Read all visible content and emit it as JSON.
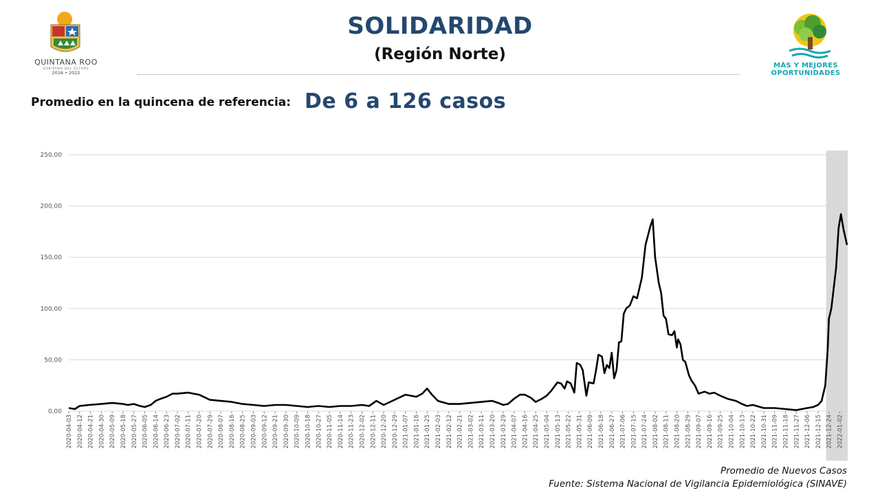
{
  "header": {
    "title": "SOLIDARIDAD",
    "subtitle": "(Región Norte)",
    "reference_label": "Promedio en la quincena de referencia:",
    "reference_value": "De 6 a 126 casos"
  },
  "logo_left": {
    "name": "QUINTANA ROO",
    "sub": "GOBIERNO DEL ESTADO",
    "years": "2016 • 2022",
    "icon": "quintana-roo-coat-of-arms"
  },
  "logo_right": {
    "line1": "MÁS Y MEJORES",
    "line2": "OPORTUNIDADES",
    "icon": "tree-logo"
  },
  "colors": {
    "title": "#24486e",
    "line": "#000000",
    "highlight": "#d9d9d9",
    "logo_teal": "#13a6b0",
    "grid": "#d9d9d9"
  },
  "footer": {
    "legend": "Promedio de Nuevos Casos",
    "source": "Fuente: Sistema Nacional de Vigilancia Epidemiológica (SINAVE)"
  },
  "chart_data": {
    "type": "line",
    "title": "",
    "xlabel": "",
    "ylabel": "",
    "ylim": [
      0,
      250
    ],
    "yticks": [
      0,
      50,
      100,
      150,
      200,
      250
    ],
    "ytick_labels": [
      "0,00",
      "50,00",
      "100,00",
      "150,00",
      "200,00",
      "250,00"
    ],
    "grid": "horizontal",
    "x_start": "2020-04-03",
    "x_end": "2022-01-08",
    "x_tick_labels": [
      "2020-04-03",
      "2020-04-12",
      "2020-04-21",
      "2020-04-30",
      "2020-05-09",
      "2020-05-18",
      "2020-05-27",
      "2020-06-05",
      "2020-06-14",
      "2020-06-23",
      "2020-07-02",
      "2020-07-11",
      "2020-07-20",
      "2020-07-29",
      "2020-08-07",
      "2020-08-16",
      "2020-08-25",
      "2020-09-03",
      "2020-09-12",
      "2020-09-21",
      "2020-09-30",
      "2020-10-09",
      "2020-10-18",
      "2020-10-27",
      "2020-11-05",
      "2020-11-14",
      "2020-11-23",
      "2020-12-02",
      "2020-12-11",
      "2020-12-20",
      "2020-12-29",
      "2021-01-07",
      "2021-01-16",
      "2021-01-25",
      "2021-02-03",
      "2021-02-12",
      "2021-02-21",
      "2021-03-02",
      "2021-03-11",
      "2021-03-20",
      "2021-03-29",
      "2021-04-07",
      "2021-04-16",
      "2021-04-25",
      "2021-05-04",
      "2021-05-13",
      "2021-05-22",
      "2021-05-31",
      "2021-06-09",
      "2021-06-18",
      "2021-06-27",
      "2021-07-06",
      "2021-07-15",
      "2021-07-24",
      "2021-08-02",
      "2021-08-11",
      "2021-08-20",
      "2021-08-29",
      "2021-09-07",
      "2021-09-16",
      "2021-09-25",
      "2021-10-04",
      "2021-10-13",
      "2021-10-22",
      "2021-10-31",
      "2021-11-09",
      "2021-11-18",
      "2021-11-27",
      "2021-12-06",
      "2021-12-15",
      "2021-12-24",
      "2022-01-02"
    ],
    "highlight_range": [
      "2021-12-24",
      "2022-01-08"
    ],
    "series": [
      {
        "name": "Promedio de Nuevos Casos",
        "points": [
          [
            "2020-04-03",
            3
          ],
          [
            "2020-04-08",
            2
          ],
          [
            "2020-04-12",
            5
          ],
          [
            "2020-04-20",
            6
          ],
          [
            "2020-04-30",
            7
          ],
          [
            "2020-05-09",
            8
          ],
          [
            "2020-05-18",
            7
          ],
          [
            "2020-05-22",
            6
          ],
          [
            "2020-05-27",
            7
          ],
          [
            "2020-06-01",
            5
          ],
          [
            "2020-06-05",
            4
          ],
          [
            "2020-06-10",
            6
          ],
          [
            "2020-06-14",
            10
          ],
          [
            "2020-06-18",
            12
          ],
          [
            "2020-06-23",
            14
          ],
          [
            "2020-06-28",
            17
          ],
          [
            "2020-07-02",
            17
          ],
          [
            "2020-07-11",
            18
          ],
          [
            "2020-07-20",
            16
          ],
          [
            "2020-07-29",
            11
          ],
          [
            "2020-08-07",
            10
          ],
          [
            "2020-08-16",
            9
          ],
          [
            "2020-08-25",
            7
          ],
          [
            "2020-09-03",
            6
          ],
          [
            "2020-09-12",
            5
          ],
          [
            "2020-09-21",
            6
          ],
          [
            "2020-09-30",
            6
          ],
          [
            "2020-10-09",
            5
          ],
          [
            "2020-10-18",
            4
          ],
          [
            "2020-10-27",
            5
          ],
          [
            "2020-11-05",
            4
          ],
          [
            "2020-11-14",
            5
          ],
          [
            "2020-11-23",
            5
          ],
          [
            "2020-12-02",
            6
          ],
          [
            "2020-12-08",
            5
          ],
          [
            "2020-12-14",
            10
          ],
          [
            "2020-12-20",
            6
          ],
          [
            "2020-12-29",
            11
          ],
          [
            "2021-01-07",
            16
          ],
          [
            "2021-01-16",
            14
          ],
          [
            "2021-01-21",
            17
          ],
          [
            "2021-01-25",
            22
          ],
          [
            "2021-01-29",
            16
          ],
          [
            "2021-02-03",
            10
          ],
          [
            "2021-02-12",
            7
          ],
          [
            "2021-02-21",
            7
          ],
          [
            "2021-03-02",
            8
          ],
          [
            "2021-03-11",
            9
          ],
          [
            "2021-03-20",
            10
          ],
          [
            "2021-03-25",
            8
          ],
          [
            "2021-03-29",
            6
          ],
          [
            "2021-04-02",
            7
          ],
          [
            "2021-04-07",
            12
          ],
          [
            "2021-04-12",
            16
          ],
          [
            "2021-04-16",
            16
          ],
          [
            "2021-04-21",
            13
          ],
          [
            "2021-04-25",
            9
          ],
          [
            "2021-04-30",
            12
          ],
          [
            "2021-05-04",
            15
          ],
          [
            "2021-05-08",
            20
          ],
          [
            "2021-05-13",
            28
          ],
          [
            "2021-05-16",
            27
          ],
          [
            "2021-05-19",
            22
          ],
          [
            "2021-05-21",
            29
          ],
          [
            "2021-05-24",
            27
          ],
          [
            "2021-05-27",
            18
          ],
          [
            "2021-05-29",
            47
          ],
          [
            "2021-06-01",
            45
          ],
          [
            "2021-06-03",
            40
          ],
          [
            "2021-06-06",
            15
          ],
          [
            "2021-06-08",
            28
          ],
          [
            "2021-06-12",
            27
          ],
          [
            "2021-06-14",
            40
          ],
          [
            "2021-06-16",
            55
          ],
          [
            "2021-06-19",
            53
          ],
          [
            "2021-06-21",
            37
          ],
          [
            "2021-06-23",
            45
          ],
          [
            "2021-06-25",
            42
          ],
          [
            "2021-06-27",
            57
          ],
          [
            "2021-06-29",
            32
          ],
          [
            "2021-07-01",
            40
          ],
          [
            "2021-07-03",
            67
          ],
          [
            "2021-07-05",
            68
          ],
          [
            "2021-07-07",
            95
          ],
          [
            "2021-07-09",
            100
          ],
          [
            "2021-07-12",
            103
          ],
          [
            "2021-07-15",
            112
          ],
          [
            "2021-07-18",
            110
          ],
          [
            "2021-07-22",
            130
          ],
          [
            "2021-07-25",
            162
          ],
          [
            "2021-07-29",
            180
          ],
          [
            "2021-07-31",
            187
          ],
          [
            "2021-08-02",
            150
          ],
          [
            "2021-08-05",
            125
          ],
          [
            "2021-08-07",
            115
          ],
          [
            "2021-08-09",
            93
          ],
          [
            "2021-08-11",
            90
          ],
          [
            "2021-08-13",
            75
          ],
          [
            "2021-08-16",
            74
          ],
          [
            "2021-08-18",
            78
          ],
          [
            "2021-08-20",
            62
          ],
          [
            "2021-08-21",
            70
          ],
          [
            "2021-08-23",
            65
          ],
          [
            "2021-08-25",
            50
          ],
          [
            "2021-08-27",
            48
          ],
          [
            "2021-08-30",
            35
          ],
          [
            "2021-09-01",
            30
          ],
          [
            "2021-09-04",
            25
          ],
          [
            "2021-09-07",
            17
          ],
          [
            "2021-09-12",
            19
          ],
          [
            "2021-09-16",
            17
          ],
          [
            "2021-09-20",
            18
          ],
          [
            "2021-09-25",
            15
          ],
          [
            "2021-10-01",
            12
          ],
          [
            "2021-10-08",
            10
          ],
          [
            "2021-10-13",
            7
          ],
          [
            "2021-10-17",
            5
          ],
          [
            "2021-10-22",
            6
          ],
          [
            "2021-10-31",
            3
          ],
          [
            "2021-11-09",
            3
          ],
          [
            "2021-11-18",
            2
          ],
          [
            "2021-11-27",
            1
          ],
          [
            "2021-12-06",
            3
          ],
          [
            "2021-12-11",
            4
          ],
          [
            "2021-12-15",
            6
          ],
          [
            "2021-12-18",
            10
          ],
          [
            "2021-12-21",
            25
          ],
          [
            "2021-12-23",
            60
          ],
          [
            "2021-12-24",
            90
          ],
          [
            "2021-12-26",
            100
          ],
          [
            "2021-12-28",
            120
          ],
          [
            "2021-12-30",
            140
          ],
          [
            "2022-01-01",
            178
          ],
          [
            "2022-01-03",
            192
          ],
          [
            "2022-01-05",
            178
          ],
          [
            "2022-01-08",
            162
          ]
        ]
      }
    ]
  }
}
